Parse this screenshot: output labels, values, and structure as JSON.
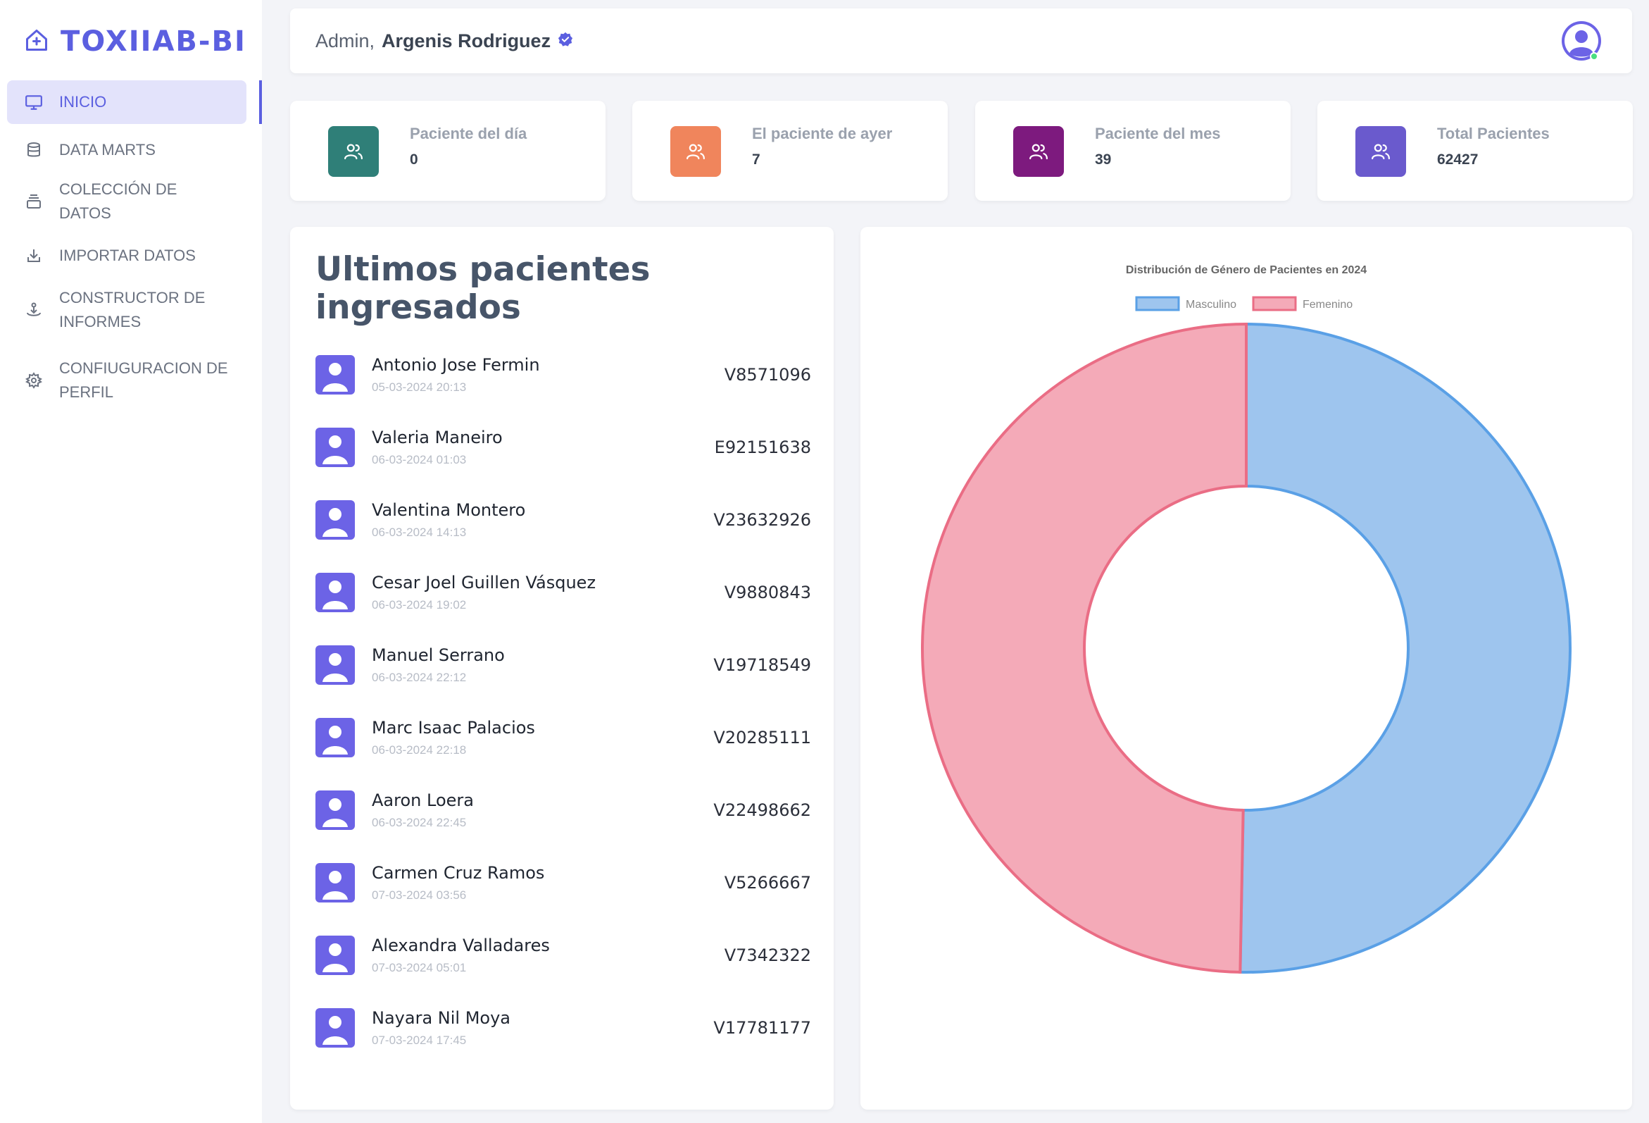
{
  "brand": {
    "name": "TOXIIAB-BI"
  },
  "sidebar": {
    "items": [
      {
        "label": "INICIO",
        "icon": "monitor-icon",
        "active": true
      },
      {
        "label": "DATA MARTS",
        "icon": "database-icon"
      },
      {
        "label": "COLECCIÓN DE DATOS",
        "icon": "stack-icon"
      },
      {
        "label": "IMPORTAR DATOS",
        "icon": "import-icon"
      },
      {
        "label": "CONSTRUCTOR DE INFORMES",
        "icon": "builder-icon"
      },
      {
        "label": "CONFIUGURACION DE PERFIL",
        "icon": "gear-icon"
      }
    ]
  },
  "header": {
    "greeting_prefix": "Admin,",
    "user_name": "Argenis Rodriguez"
  },
  "stats": [
    {
      "label": "Paciente del día",
      "value": "0",
      "color": "#2f7f78"
    },
    {
      "label": "El paciente de ayer",
      "value": "7",
      "color": "#f0855c"
    },
    {
      "label": "Paciente del mes",
      "value": "39",
      "color": "#7d1a7e"
    },
    {
      "label": "Total Pacientes",
      "value": "62427",
      "color": "#6a5acd"
    }
  ],
  "patients_panel": {
    "title": "Ultimos pacientes ingresados",
    "items": [
      {
        "name": "Antonio Jose Fermin",
        "date": "05-03-2024 20:13",
        "id": "V8571096"
      },
      {
        "name": "Valeria Maneiro",
        "date": "06-03-2024 01:03",
        "id": "E92151638"
      },
      {
        "name": "Valentina Montero",
        "date": "06-03-2024 14:13",
        "id": "V23632926"
      },
      {
        "name": "Cesar Joel Guillen Vásquez",
        "date": "06-03-2024 19:02",
        "id": "V9880843"
      },
      {
        "name": "Manuel Serrano",
        "date": "06-03-2024 22:12",
        "id": "V19718549"
      },
      {
        "name": "Marc Isaac Palacios",
        "date": "06-03-2024 22:18",
        "id": "V20285111"
      },
      {
        "name": "Aaron Loera",
        "date": "06-03-2024 22:45",
        "id": "V22498662"
      },
      {
        "name": "Carmen Cruz Ramos",
        "date": "07-03-2024 03:56",
        "id": "V5266667"
      },
      {
        "name": "Alexandra Valladares",
        "date": "07-03-2024 05:01",
        "id": "V7342322"
      },
      {
        "name": "Nayara Nil Moya",
        "date": "07-03-2024 17:45",
        "id": "V17781177"
      }
    ]
  },
  "chart_data": {
    "type": "pie",
    "variant": "doughnut",
    "title": "Distribución de Género de Pacientes en 2024",
    "categories": [
      "Masculino",
      "Femenino"
    ],
    "values": [
      50.3,
      49.7
    ],
    "colors": {
      "Masculino": {
        "fill": "#9ec5ee",
        "stroke": "#5aa0e6"
      },
      "Femenino": {
        "fill": "#f4aab8",
        "stroke": "#ea6d85"
      }
    },
    "legend": "top"
  }
}
